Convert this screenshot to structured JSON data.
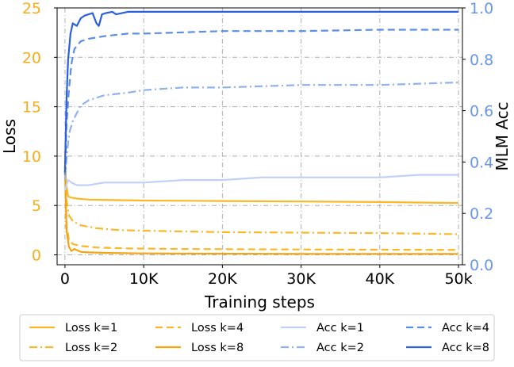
{
  "chart_data": {
    "type": "line",
    "xlabel": "Training steps",
    "ylabel_left": "Loss",
    "ylabel_right": "MLM Acc",
    "xlim": [
      -1000,
      50500
    ],
    "ylim_left": [
      -1,
      25
    ],
    "ylim_right": [
      0.0,
      1.0
    ],
    "x_ticks": [
      0,
      10000,
      20000,
      30000,
      40000,
      50000
    ],
    "x_tick_labels": [
      "0",
      "10K",
      "20K",
      "30K",
      "40K",
      "50k"
    ],
    "y_left_ticks": [
      0,
      5,
      10,
      15,
      20,
      25
    ],
    "y_left_tick_labels": [
      "0",
      "5",
      "10",
      "15",
      "20",
      "25"
    ],
    "y_right_ticks": [
      0.0,
      0.2,
      0.4,
      0.6,
      0.8,
      1.0
    ],
    "y_right_tick_labels": [
      "0.0",
      "0.2",
      "0.4",
      "0.6",
      "0.8",
      "1.0"
    ],
    "grid": true,
    "legend_position": "bottom",
    "colors": {
      "loss": "#fbb726",
      "loss_dark": "#f5a30f",
      "acc_k1": "#bfd1f6",
      "acc_k2": "#8fb1ef",
      "acc_k4": "#5b8ee6",
      "acc_k8": "#2a5fe0",
      "left_axis": "#f7ad19",
      "right_axis": "#6a95ea"
    },
    "series": [
      {
        "name": "Loss k=1",
        "axis": "left",
        "style": "solid",
        "color": "loss",
        "x": [
          0,
          150,
          400,
          800,
          1500,
          3000,
          6000,
          10000,
          20000,
          30000,
          40000,
          50000
        ],
        "y": [
          9.5,
          7.2,
          5.9,
          5.8,
          5.7,
          5.6,
          5.55,
          5.5,
          5.45,
          5.4,
          5.35,
          5.25
        ]
      },
      {
        "name": "Loss k=2",
        "axis": "left",
        "style": "dashdot",
        "color": "loss",
        "x": [
          0,
          200,
          500,
          1000,
          2000,
          4000,
          7000,
          10000,
          20000,
          30000,
          40000,
          50000
        ],
        "y": [
          10.5,
          5.5,
          4.0,
          3.4,
          3.0,
          2.7,
          2.5,
          2.45,
          2.3,
          2.25,
          2.2,
          2.1
        ]
      },
      {
        "name": "Loss k=4",
        "axis": "left",
        "style": "dashed",
        "color": "loss",
        "x": [
          0,
          200,
          500,
          1000,
          2000,
          4000,
          8000,
          15000,
          30000,
          50000
        ],
        "y": [
          9.0,
          3.0,
          1.5,
          1.1,
          0.9,
          0.75,
          0.65,
          0.6,
          0.55,
          0.5
        ]
      },
      {
        "name": "Loss k=8",
        "axis": "left",
        "style": "solid",
        "color": "loss_dark",
        "x": [
          0,
          200,
          500,
          800,
          1200,
          2000,
          3000,
          5000,
          10000,
          30000,
          50000
        ],
        "y": [
          8.5,
          2.5,
          0.8,
          0.4,
          0.6,
          0.3,
          0.25,
          0.2,
          0.15,
          0.1,
          0.1
        ]
      },
      {
        "name": "Acc k=1",
        "axis": "right",
        "style": "solid",
        "color": "acc_k1",
        "x": [
          0,
          400,
          800,
          1500,
          3000,
          5000,
          7000,
          10000,
          15000,
          20000,
          25000,
          30000,
          35000,
          40000,
          45000,
          50000
        ],
        "y": [
          0.29,
          0.33,
          0.32,
          0.31,
          0.31,
          0.32,
          0.32,
          0.32,
          0.33,
          0.33,
          0.34,
          0.34,
          0.34,
          0.34,
          0.35,
          0.35
        ]
      },
      {
        "name": "Acc k=2",
        "axis": "right",
        "style": "dashdot",
        "color": "acc_k2",
        "x": [
          0,
          300,
          600,
          1000,
          1500,
          2000,
          3000,
          5000,
          8000,
          10000,
          15000,
          20000,
          30000,
          40000,
          50000
        ],
        "y": [
          0.33,
          0.45,
          0.52,
          0.56,
          0.59,
          0.62,
          0.64,
          0.66,
          0.67,
          0.68,
          0.69,
          0.69,
          0.7,
          0.7,
          0.71
        ]
      },
      {
        "name": "Acc k=4",
        "axis": "right",
        "style": "dashed",
        "color": "acc_k4",
        "x": [
          0,
          200,
          500,
          800,
          1200,
          2000,
          3000,
          5000,
          8000,
          10000,
          15000,
          20000,
          30000,
          40000,
          50000
        ],
        "y": [
          0.35,
          0.55,
          0.68,
          0.78,
          0.84,
          0.87,
          0.88,
          0.89,
          0.9,
          0.9,
          0.905,
          0.91,
          0.91,
          0.915,
          0.915
        ]
      },
      {
        "name": "Acc k=8",
        "axis": "right",
        "style": "solid",
        "color": "acc_k8",
        "x": [
          0,
          200,
          400,
          700,
          1000,
          1500,
          2000,
          2500,
          3000,
          3500,
          4000,
          4300,
          4700,
          5200,
          6000,
          6500,
          8000,
          10000,
          20000,
          30000,
          40000,
          50000
        ],
        "y": [
          0.36,
          0.65,
          0.8,
          0.9,
          0.94,
          0.93,
          0.96,
          0.97,
          0.975,
          0.98,
          0.94,
          0.93,
          0.975,
          0.98,
          0.985,
          0.975,
          0.985,
          0.985,
          0.985,
          0.985,
          0.985,
          0.985
        ]
      }
    ],
    "legend": [
      {
        "label": "Loss k=1",
        "series": 0
      },
      {
        "label": "Loss k=4",
        "series": 2
      },
      {
        "label": "Acc k=1",
        "series": 4
      },
      {
        "label": "Acc k=4",
        "series": 6
      },
      {
        "label": "Loss k=2",
        "series": 1
      },
      {
        "label": "Loss k=8",
        "series": 3
      },
      {
        "label": "Acc k=2",
        "series": 5
      },
      {
        "label": "Acc k=8",
        "series": 7
      }
    ]
  }
}
